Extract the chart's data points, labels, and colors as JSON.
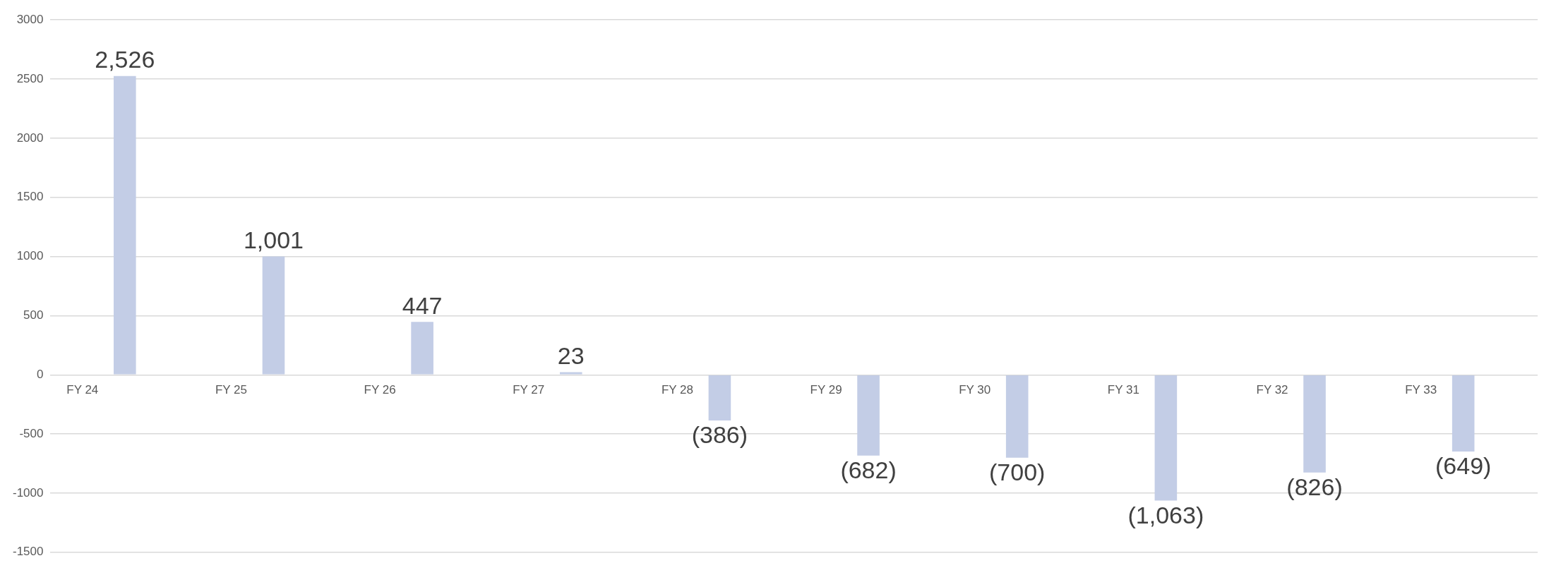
{
  "chart_data": {
    "type": "bar",
    "categories": [
      "FY 24",
      "FY 25",
      "FY 26",
      "FY 27",
      "FY 28",
      "FY 29",
      "FY 30",
      "FY 31",
      "FY 32",
      "FY 33"
    ],
    "values": [
      2526,
      1001,
      447,
      23,
      -386,
      -682,
      -700,
      -1063,
      -826,
      -649
    ],
    "value_labels": [
      "2,526",
      "1,001",
      "447",
      "23",
      "(386)",
      "(682)",
      "(700)",
      "(1,063)",
      "(826)",
      "(649)"
    ],
    "color": "#c3cde6",
    "ylim": [
      -1500,
      3000
    ],
    "yticks": [
      -1500,
      -1000,
      -500,
      0,
      500,
      1000,
      1500,
      2000,
      2500,
      3000
    ],
    "grid": "y",
    "legend": false
  }
}
